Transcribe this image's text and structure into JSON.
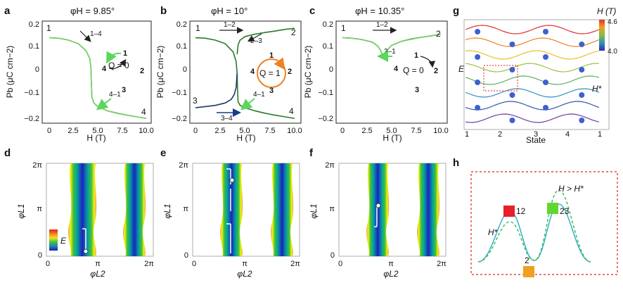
{
  "panels": {
    "a": {
      "label": "a",
      "title": "φH = 9.85°",
      "q_text": "Q = 0",
      "state_arrow": "1–4",
      "return_arrow": "4–1",
      "state_labels": [
        "1",
        "4",
        "2",
        "3",
        "1",
        "4"
      ]
    },
    "b": {
      "label": "b",
      "title": "φH = 10°",
      "q_text": "Q = 1",
      "arrow_12": "1–2",
      "arrow_23": "2–3",
      "arrow_34": "3–4",
      "arrow_41": "4–1",
      "state_labels": [
        "1",
        "2",
        "3",
        "4",
        "1",
        "2",
        "3",
        "4"
      ]
    },
    "c": {
      "label": "c",
      "title": "φH = 10.35°",
      "q_text": "Q = 0",
      "arrow_12": "1–2",
      "arrow_21": "2–1",
      "state_labels": [
        "1",
        "2",
        "1",
        "4",
        "2",
        "3"
      ]
    },
    "d": {
      "label": "d"
    },
    "e": {
      "label": "e"
    },
    "f": {
      "label": "f"
    },
    "g": {
      "label": "g",
      "ylabel": "E",
      "xlabel": "State",
      "state_ticks": [
        "1",
        "2",
        "3",
        "4",
        "1"
      ],
      "colorbar_title": "H (T)",
      "colorbar_max": "4.6",
      "colorbar_min": "4.0",
      "hstar_label": "H*"
    },
    "h": {
      "label": "h",
      "hgt_label": "H > H*",
      "hstar_label": "H*",
      "box_labels": [
        "12",
        "23",
        "2"
      ]
    }
  },
  "axes": {
    "hysteresis": {
      "ylabel": "Pb (μC cm−2)",
      "xlabel": "H (T)",
      "yticks": [
        "0.2",
        "0.1",
        "0",
        "−0.1",
        "−0.2"
      ],
      "xticks": [
        "0",
        "2.5",
        "5.0",
        "7.5",
        "10.0"
      ]
    },
    "phase": {
      "ylabel": "φL1",
      "xlabel": "φL2",
      "yticks": [
        "2π",
        "π",
        "0"
      ],
      "xticks": [
        "0",
        "π",
        "2π"
      ],
      "legend": "E"
    }
  },
  "chart_data": [
    {
      "type": "line",
      "panel": "a",
      "title": "φH = 9.85°",
      "xlabel": "H (T)",
      "ylabel": "Pb (μC cm−2)",
      "xlim": [
        0,
        10
      ],
      "ylim": [
        -0.21,
        0.22
      ],
      "series": [
        {
          "color": "#2a7a2a",
          "x": [
            0,
            1,
            2,
            3,
            3.8,
            4.2,
            4.3,
            4.35,
            4.4,
            4.6,
            5,
            6,
            7,
            8,
            9,
            10
          ],
          "y": [
            0.15,
            0.148,
            0.14,
            0.125,
            0.095,
            0.06,
            0.02,
            -0.05,
            -0.1,
            -0.125,
            -0.14,
            -0.158,
            -0.168,
            -0.176,
            -0.183,
            -0.19
          ]
        },
        {
          "color": "#7cd36b",
          "x": [
            10,
            8,
            6,
            5,
            4.6,
            4.4,
            4.35,
            4.3,
            4.2,
            3.8,
            3,
            2,
            1,
            0
          ],
          "y": [
            -0.19,
            -0.176,
            -0.158,
            -0.14,
            -0.125,
            -0.1,
            -0.05,
            0.02,
            0.06,
            0.095,
            0.125,
            0.14,
            0.148,
            0.15
          ]
        }
      ]
    },
    {
      "type": "line",
      "panel": "b",
      "title": "φH = 10°",
      "xlabel": "H (T)",
      "ylabel": "Pb (μC cm−2)",
      "xlim": [
        0,
        10
      ],
      "ylim": [
        -0.21,
        0.22
      ],
      "series": [
        {
          "color": "#2a7a2a",
          "x": [
            0,
            1,
            2,
            3,
            3.8,
            4.1,
            4.2,
            4.25,
            4.3,
            4.5,
            5,
            6,
            7,
            8,
            9,
            10
          ],
          "y": [
            0.15,
            0.148,
            0.14,
            0.125,
            0.09,
            0.05,
            0.0,
            -0.08,
            -0.12,
            -0.135,
            -0.145,
            -0.158,
            -0.168,
            -0.176,
            -0.183,
            -0.19
          ]
        },
        {
          "color": "#1a3a6a",
          "x": [
            0,
            1,
            2,
            3,
            3.6,
            3.9,
            4.1,
            4.2
          ],
          "y": [
            -0.145,
            -0.14,
            -0.135,
            -0.125,
            -0.11,
            -0.09,
            -0.06,
            0.0
          ]
        },
        {
          "color": "#2a7a2a",
          "x": [
            4.2,
            4.3,
            4.5,
            5,
            6,
            7,
            8,
            9,
            10
          ],
          "y": [
            0.08,
            0.12,
            0.14,
            0.155,
            0.165,
            0.172,
            0.178,
            0.185,
            0.19
          ]
        }
      ]
    },
    {
      "type": "line",
      "panel": "c",
      "title": "φH = 10.35°",
      "xlabel": "H (T)",
      "ylabel": "Pb (μC cm−2)",
      "xlim": [
        0,
        10
      ],
      "ylim": [
        -0.21,
        0.22
      ],
      "series": [
        {
          "color": "#2a7a2a",
          "x": [
            0,
            1,
            2,
            3,
            3.6,
            3.9,
            4.1,
            4.3,
            4.6,
            5,
            6,
            7,
            8,
            9,
            10
          ],
          "y": [
            0.15,
            0.148,
            0.142,
            0.132,
            0.115,
            0.095,
            0.07,
            0.085,
            0.1,
            0.118,
            0.135,
            0.145,
            0.152,
            0.158,
            0.165
          ]
        },
        {
          "color": "#7cd36b",
          "x": [
            10,
            8,
            6,
            5,
            4.6,
            4.3,
            4.1,
            3.9,
            3.6,
            3,
            2,
            1,
            0
          ],
          "y": [
            0.165,
            0.152,
            0.135,
            0.118,
            0.1,
            0.085,
            0.07,
            0.095,
            0.115,
            0.132,
            0.142,
            0.148,
            0.15
          ]
        }
      ]
    }
  ]
}
